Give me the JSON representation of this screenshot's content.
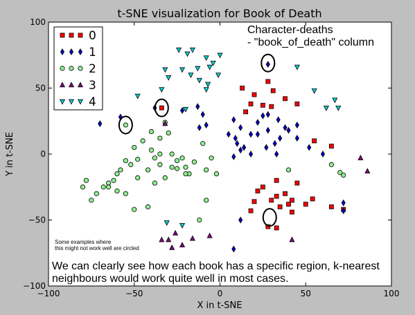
{
  "chart_data": {
    "type": "scatter",
    "title": "t-SNE visualization for Book of Death",
    "xlabel": "X in t-SNE",
    "ylabel": "Y in t-SNE",
    "xlim": [
      -100,
      100
    ],
    "ylim": [
      -100,
      100
    ],
    "xticks": [
      -100,
      -50,
      0,
      50,
      100
    ],
    "yticks": [
      -100,
      -50,
      0,
      50,
      100
    ],
    "xtick_labels": [
      "−100",
      "−50",
      "0",
      "50",
      "100"
    ],
    "ytick_labels": [
      "−100",
      "−50",
      "0",
      "50",
      "100"
    ],
    "grid": false,
    "legend_position": "top-left",
    "series": [
      {
        "name": "0",
        "marker": "square",
        "color": "#ff0000",
        "x": [
          -34,
          13,
          20,
          18,
          15,
          28,
          31,
          38,
          45,
          30,
          25,
          55,
          65,
          33,
          38,
          45,
          22,
          25,
          33,
          30,
          35,
          42,
          50,
          54,
          65,
          72,
          28,
          40,
          42,
          20,
          18,
          33
        ],
        "y": [
          35,
          50,
          45,
          38,
          32,
          55,
          48,
          42,
          38,
          36,
          37,
          10,
          6,
          -20,
          -30,
          -22,
          -28,
          -25,
          -32,
          -35,
          -40,
          -35,
          -38,
          -34,
          -40,
          -42,
          -55,
          -38,
          -44,
          -36,
          -43,
          -56
        ]
      },
      {
        "name": "1",
        "marker": "diamond",
        "color": "#0000cd",
        "x": [
          28,
          -58,
          -70,
          -38,
          -22,
          -13,
          -10,
          -8,
          -12,
          8,
          5,
          9,
          10,
          14,
          18,
          22,
          25,
          28,
          34,
          38,
          40,
          45,
          8,
          12,
          18,
          27,
          32,
          33,
          22,
          12,
          28,
          35,
          45,
          52,
          60,
          72,
          72,
          12,
          8
        ],
        "y": [
          68,
          28,
          23,
          35,
          33,
          36,
          30,
          22,
          20,
          26,
          15,
          12,
          8,
          5,
          15,
          24,
          29,
          30,
          26,
          20,
          18,
          22,
          -2,
          3,
          0,
          5,
          8,
          0,
          15,
          20,
          18,
          12,
          12,
          5,
          0,
          -37,
          -43,
          -50,
          -72
        ]
      },
      {
        "name": "2",
        "marker": "circle",
        "color": "#90ee90",
        "x": [
          -55,
          -40,
          -32,
          -30,
          -35,
          -45,
          -50,
          -40,
          -35,
          -28,
          -25,
          -22,
          -20,
          -10,
          -5,
          -15,
          -18,
          -8,
          -2,
          -25,
          -28,
          -35,
          -38,
          -42,
          -48,
          -52,
          -55,
          -58,
          -60,
          -62,
          -65,
          -68,
          -72,
          -75,
          -78,
          -80,
          -42,
          -50,
          -55,
          -60,
          -65,
          -48,
          -38,
          -32,
          -20,
          -12,
          -8,
          40,
          65,
          72,
          70
        ],
        "y": [
          22,
          17,
          24,
          16,
          12,
          10,
          5,
          3,
          0,
          0,
          -5,
          -3,
          -10,
          8,
          -3,
          -6,
          -15,
          -12,
          -15,
          -11,
          -10,
          -8,
          -3,
          -12,
          -4,
          -8,
          -5,
          -12,
          -15,
          -20,
          -22,
          -25,
          -30,
          -35,
          -20,
          -25,
          -40,
          -42,
          -30,
          -28,
          -25,
          -18,
          -22,
          -18,
          -15,
          -50,
          -35,
          -12,
          -8,
          -16,
          -14
        ]
      },
      {
        "name": "3",
        "marker": "triangle-up",
        "color": "#800080",
        "x": [
          -32,
          -30,
          -34,
          -28,
          -22,
          -16,
          -6,
          -26,
          82,
          86,
          42
        ],
        "y": [
          23,
          -65,
          -65,
          -71,
          -69,
          -64,
          -62,
          -60,
          -3,
          -13,
          -65
        ]
      },
      {
        "name": "4",
        "marker": "triangle-down",
        "color": "#00ced1",
        "x": [
          -24,
          -19,
          -16,
          -8,
          -4,
          0,
          -13,
          -6,
          -1,
          -32,
          -22,
          -17,
          -12,
          -7,
          -8,
          -30,
          -34,
          -48,
          -20,
          55,
          62,
          67,
          69,
          45,
          -31,
          -22
        ],
        "y": [
          79,
          76,
          79,
          73,
          69,
          75,
          65,
          66,
          60,
          64,
          64,
          60,
          56,
          53,
          49,
          58,
          49,
          44,
          34,
          48,
          35,
          41,
          35,
          66,
          -52,
          -54
        ]
      }
    ],
    "annotations": {
      "top_right": "Character-deaths\n- \"book_of_death\" column",
      "small_note": "Some examples where\nthis might not work well are circled",
      "bottom_text": "We can clearly see how each book has a specific region, k-nearest\nneighbours would work quite well in most cases."
    },
    "highlight_circles": [
      {
        "x": -55,
        "y": 22
      },
      {
        "x": -34,
        "y": 35
      },
      {
        "x": 28,
        "y": 69
      },
      {
        "x": 29,
        "y": -48
      }
    ]
  }
}
